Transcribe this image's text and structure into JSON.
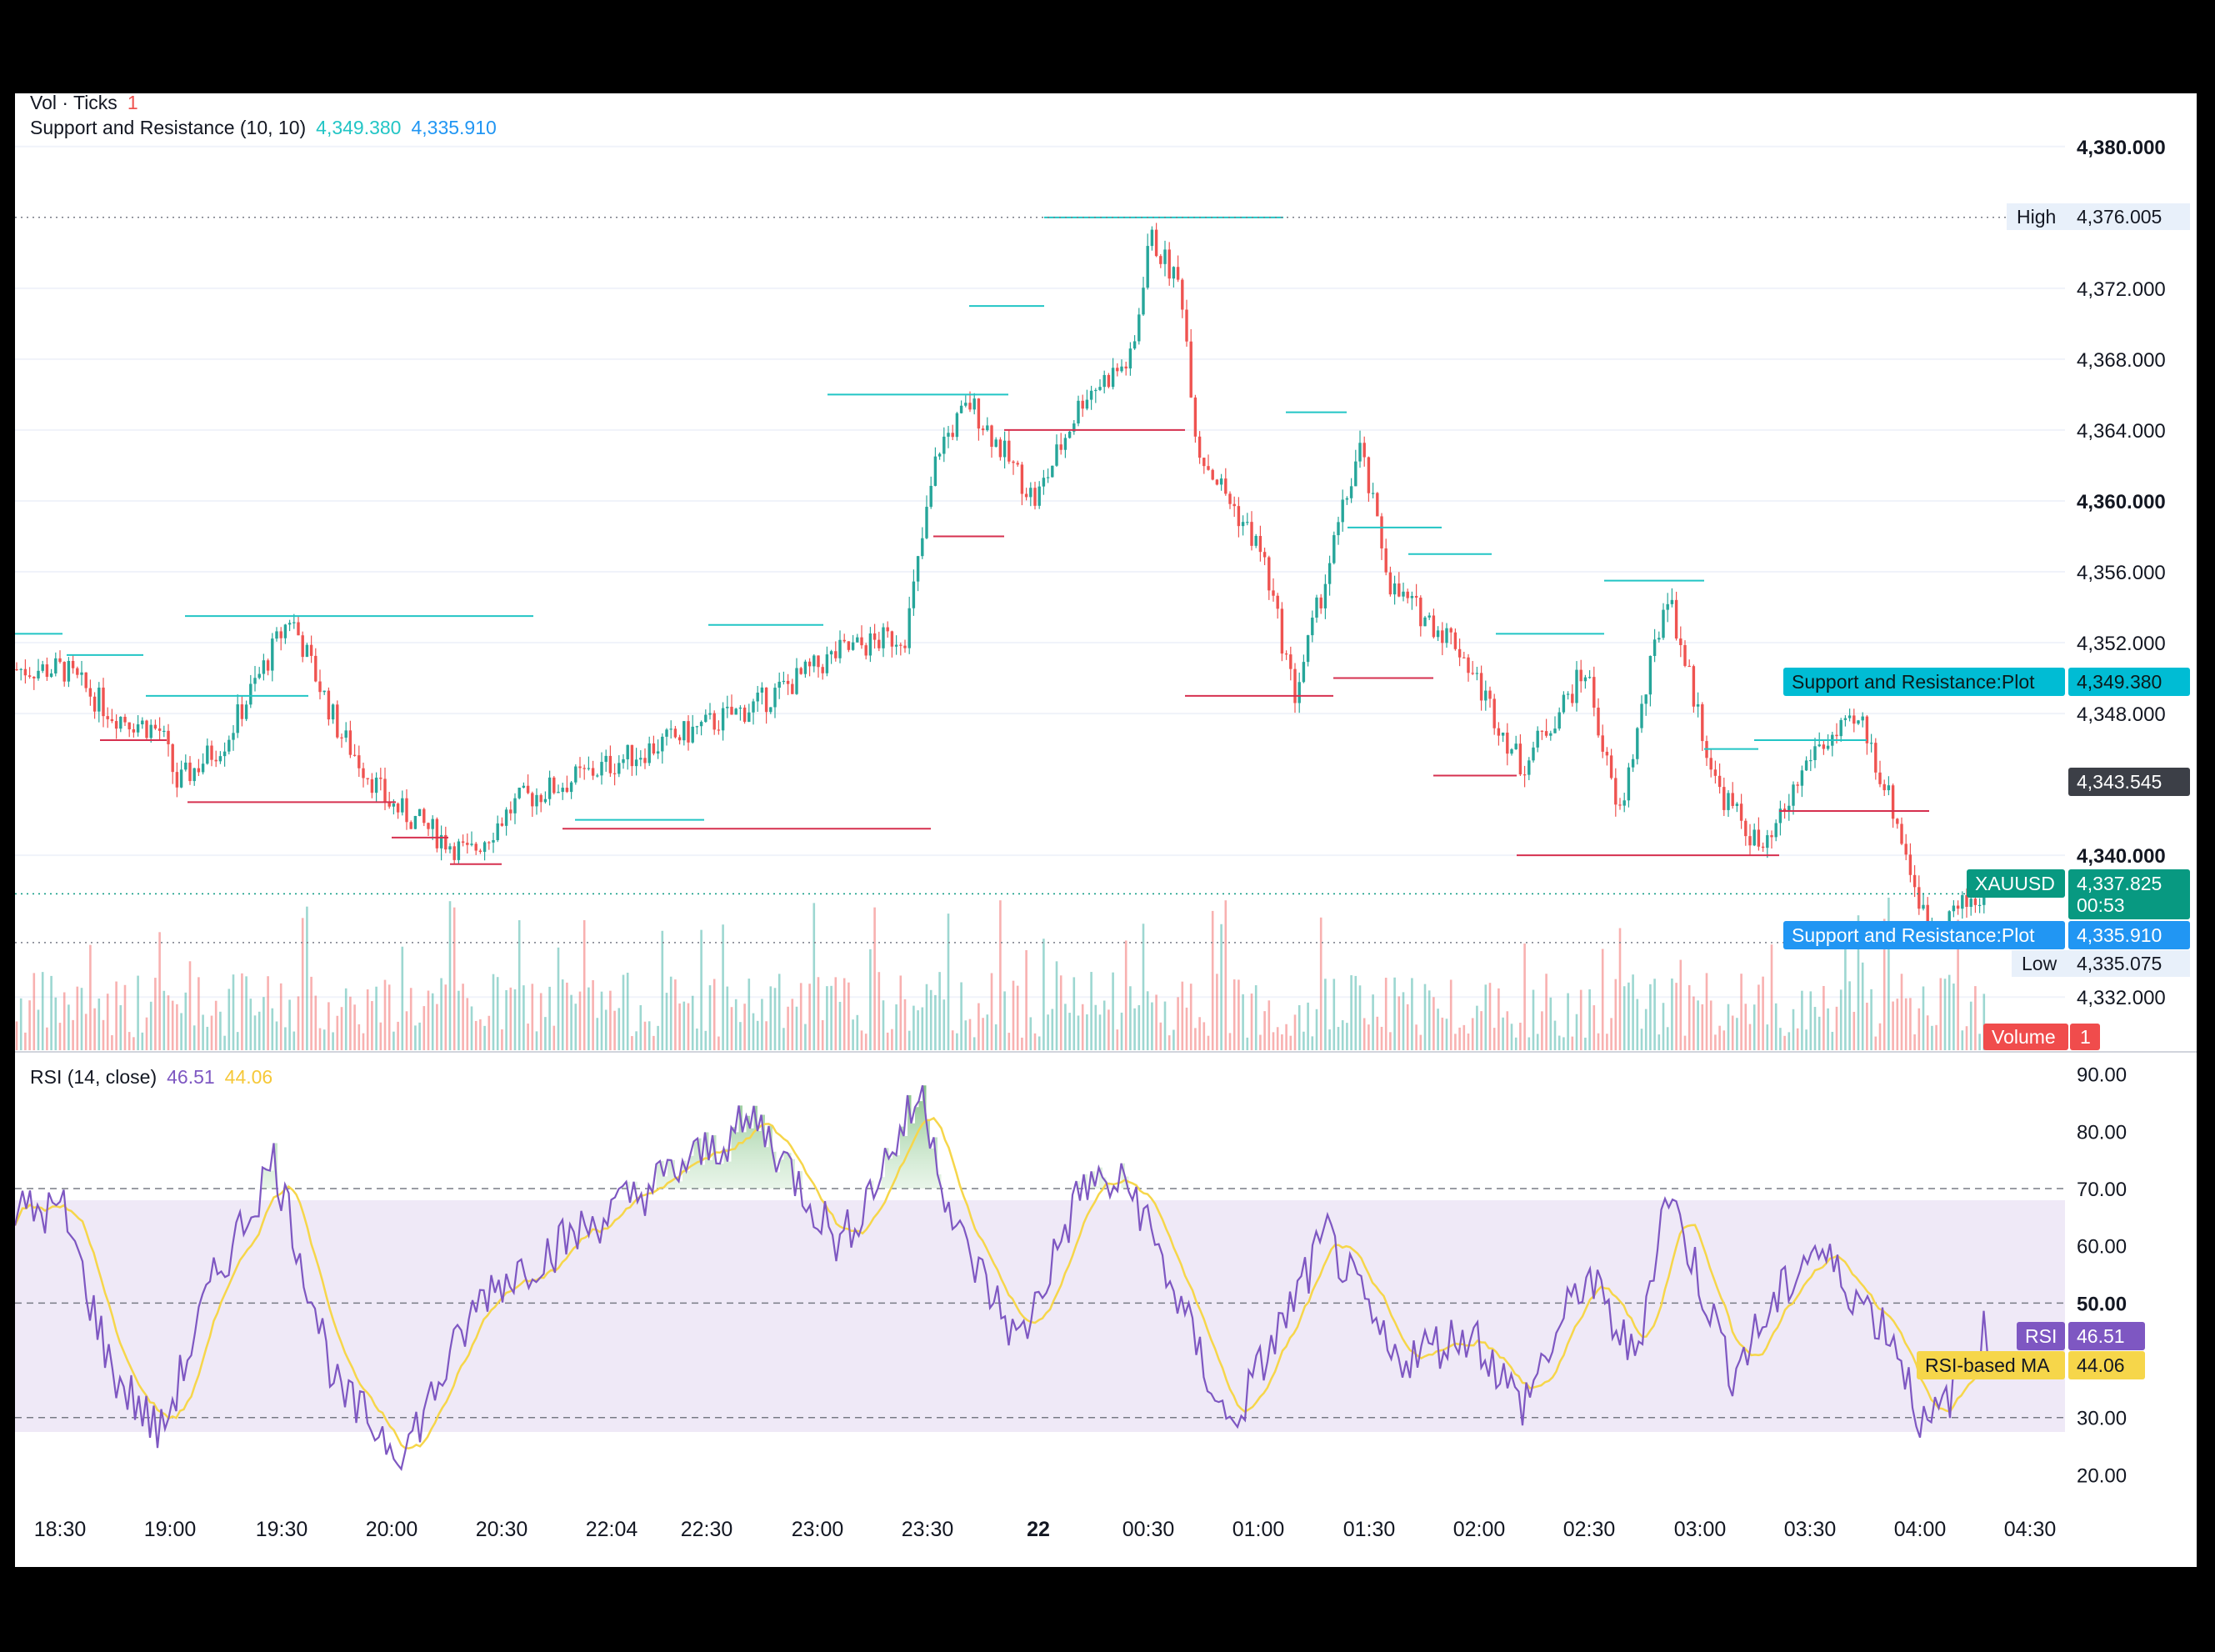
{
  "legend": {
    "vol_label": "Vol · Ticks",
    "vol_value": "1",
    "sr_label": "Support and Resistance (10, 10)",
    "sr_value_1": "4,349.380",
    "sr_value_2": "4,335.910",
    "rsi_label": "RSI (14, close)",
    "rsi_value": "46.51",
    "rsi_ma_value": "44.06"
  },
  "price_axis": {
    "ticks": [
      "4,380.000",
      "4,372.000",
      "4,368.000",
      "4,364.000",
      "4,360.000",
      "4,356.000",
      "4,352.000",
      "4,348.000",
      "4,340.000",
      "4,332.000"
    ],
    "bold_ticks": [
      "4,380.000",
      "4,360.000",
      "4,340.000"
    ]
  },
  "price_tags": {
    "high_label": "High",
    "high_value": "4,376.005",
    "resistance_label": "Support and Resistance:Plot",
    "resistance_value": "4,349.380",
    "last_close_value": "4,343.545",
    "symbol_label": "XAUUSD",
    "symbol_value": "4,337.825",
    "countdown": "00:53",
    "support_label": "Support and Resistance:Plot",
    "support_value": "4,335.910",
    "low_label": "Low",
    "low_value": "4,335.075",
    "volume_label": "Volume",
    "volume_value": "1"
  },
  "rsi_axis": {
    "ticks": [
      "90.00",
      "80.00",
      "70.00",
      "60.00",
      "50.00",
      "30.00",
      "20.00"
    ],
    "rsi_tag_label": "RSI",
    "rsi_tag_value": "46.51",
    "ma_tag_label": "RSI-based MA",
    "ma_tag_value": "44.06"
  },
  "time_axis": {
    "ticks": [
      "18:30",
      "19:00",
      "19:30",
      "20:00",
      "20:30",
      "22:04",
      "22:30",
      "23:00",
      "23:30",
      "22",
      "00:30",
      "01:00",
      "01:30",
      "02:00",
      "02:30",
      "03:00",
      "03:30",
      "04:00",
      "04:30"
    ],
    "bold_ticks": [
      "22"
    ]
  },
  "colors": {
    "up": "#26a69a",
    "down": "#ef5350",
    "resistance": "#22c5c5",
    "support": "#d6304f",
    "rsi": "#7e57c2",
    "rsi_ma": "#f6d64a",
    "rsi_band": "#ede7f6"
  },
  "chart_data": [
    {
      "type": "candlestick",
      "symbol": "XAUUSD",
      "y_range": [
        4329,
        4383
      ],
      "key_points": [
        {
          "x": "18:30",
          "y": 4350.5
        },
        {
          "x": "18:45",
          "y": 4348.0
        },
        {
          "x": "19:00",
          "y": 4347.0
        },
        {
          "x": "19:05",
          "y": 4344.0
        },
        {
          "x": "19:20",
          "y": 4346.5
        },
        {
          "x": "19:40",
          "y": 4353.5
        },
        {
          "x": "19:55",
          "y": 4347.0
        },
        {
          "x": "20:10",
          "y": 4343.0
        },
        {
          "x": "20:35",
          "y": 4340.0
        },
        {
          "x": "20:50",
          "y": 4343.0
        },
        {
          "x": "22:04",
          "y": 4348.5
        },
        {
          "x": "22:30",
          "y": 4351.5
        },
        {
          "x": "22:50",
          "y": 4352.5
        },
        {
          "x": "23:00",
          "y": 4363.0
        },
        {
          "x": "23:10",
          "y": 4365.5
        },
        {
          "x": "23:30",
          "y": 4360.0
        },
        {
          "x": "23:45",
          "y": 4366.0
        },
        {
          "x": "00:00",
          "y": 4368.0
        },
        {
          "x": "00:05",
          "y": 4375.0
        },
        {
          "x": "00:15",
          "y": 4372.0
        },
        {
          "x": "00:20",
          "y": 4363.0
        },
        {
          "x": "00:40",
          "y": 4357.0
        },
        {
          "x": "00:50",
          "y": 4349.0
        },
        {
          "x": "01:10",
          "y": 4363.0
        },
        {
          "x": "01:20",
          "y": 4355.0
        },
        {
          "x": "01:40",
          "y": 4352.0
        },
        {
          "x": "02:00",
          "y": 4345.0
        },
        {
          "x": "02:20",
          "y": 4350.5
        },
        {
          "x": "02:30",
          "y": 4342.0
        },
        {
          "x": "02:45",
          "y": 4355.0
        },
        {
          "x": "03:00",
          "y": 4344.0
        },
        {
          "x": "03:15",
          "y": 4340.0
        },
        {
          "x": "03:30",
          "y": 4346.0
        },
        {
          "x": "03:45",
          "y": 4347.5
        },
        {
          "x": "03:55",
          "y": 4342.5
        },
        {
          "x": "04:05",
          "y": 4336.0
        },
        {
          "x": "04:25",
          "y": 4338.0
        }
      ],
      "high": 4376.005,
      "low": 4335.075,
      "last": 4337.825,
      "resistance_levels": [
        4352.5,
        4351.3,
        4349.0,
        4353.5,
        4342.0,
        4353.0,
        4366.0,
        4371.0,
        4376.0,
        4365.0,
        4358.5,
        4357.0,
        4352.5,
        4355.5,
        4346.0,
        4346.5
      ],
      "support_levels": [
        4346.5,
        4343.0,
        4341.0,
        4339.5,
        4341.5,
        4358.0,
        4364.0,
        4349.0,
        4350.0,
        4344.5,
        4340.0,
        4340.0,
        4342.5,
        4337.5
      ]
    },
    {
      "type": "bar",
      "name": "Volume",
      "note": "per-candle tick volume bars, relative heights"
    },
    {
      "type": "line",
      "name": "RSI (14, close)",
      "y_range": [
        17,
        93
      ],
      "overbought": 70,
      "oversold": 30,
      "middle": 50,
      "key_points": [
        {
          "x": "18:30",
          "y": 66
        },
        {
          "x": "18:45",
          "y": 38
        },
        {
          "x": "19:00",
          "y": 27
        },
        {
          "x": "19:15",
          "y": 52
        },
        {
          "x": "19:35",
          "y": 75
        },
        {
          "x": "19:55",
          "y": 34
        },
        {
          "x": "20:15",
          "y": 24
        },
        {
          "x": "20:40",
          "y": 52
        },
        {
          "x": "22:04",
          "y": 82
        },
        {
          "x": "22:30",
          "y": 60
        },
        {
          "x": "22:55",
          "y": 87
        },
        {
          "x": "23:05",
          "y": 63
        },
        {
          "x": "23:25",
          "y": 43
        },
        {
          "x": "23:45",
          "y": 71
        },
        {
          "x": "00:00",
          "y": 70
        },
        {
          "x": "00:30",
          "y": 28
        },
        {
          "x": "01:00",
          "y": 62
        },
        {
          "x": "01:20",
          "y": 40
        },
        {
          "x": "01:45",
          "y": 45
        },
        {
          "x": "02:00",
          "y": 32
        },
        {
          "x": "02:20",
          "y": 55
        },
        {
          "x": "02:35",
          "y": 40
        },
        {
          "x": "02:45",
          "y": 70
        },
        {
          "x": "03:05",
          "y": 38
        },
        {
          "x": "03:30",
          "y": 60
        },
        {
          "x": "03:55",
          "y": 44
        },
        {
          "x": "04:05",
          "y": 27
        },
        {
          "x": "04:25",
          "y": 46.51
        }
      ],
      "ma_last": 44.06
    }
  ]
}
